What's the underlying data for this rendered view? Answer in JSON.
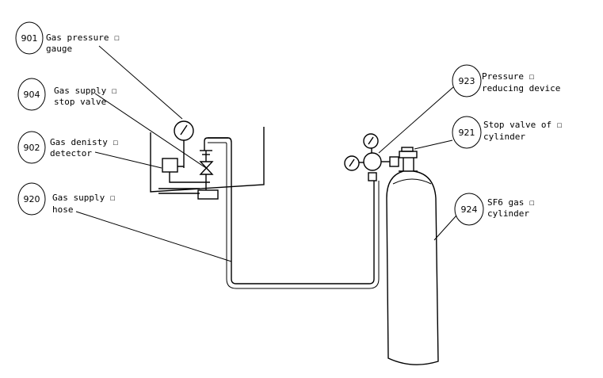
{
  "callouts": [
    {
      "id": "901",
      "lines": [
        "Gas pressure ☐",
        "gauge"
      ]
    },
    {
      "id": "904",
      "lines": [
        "Gas supply ☐",
        "stop valve"
      ]
    },
    {
      "id": "902",
      "lines": [
        "Gas denisty ☐",
        "detector"
      ]
    },
    {
      "id": "920",
      "lines": [
        "Gas supply ☐",
        "hose"
      ]
    },
    {
      "id": "923",
      "lines": [
        "Pressure ☐",
        "reducing device"
      ]
    },
    {
      "id": "921",
      "lines": [
        "Stop valve of ☐",
        "cylinder"
      ]
    },
    {
      "id": "924",
      "lines": [
        "SF6 gas ☐",
        "cylinder"
      ]
    }
  ]
}
